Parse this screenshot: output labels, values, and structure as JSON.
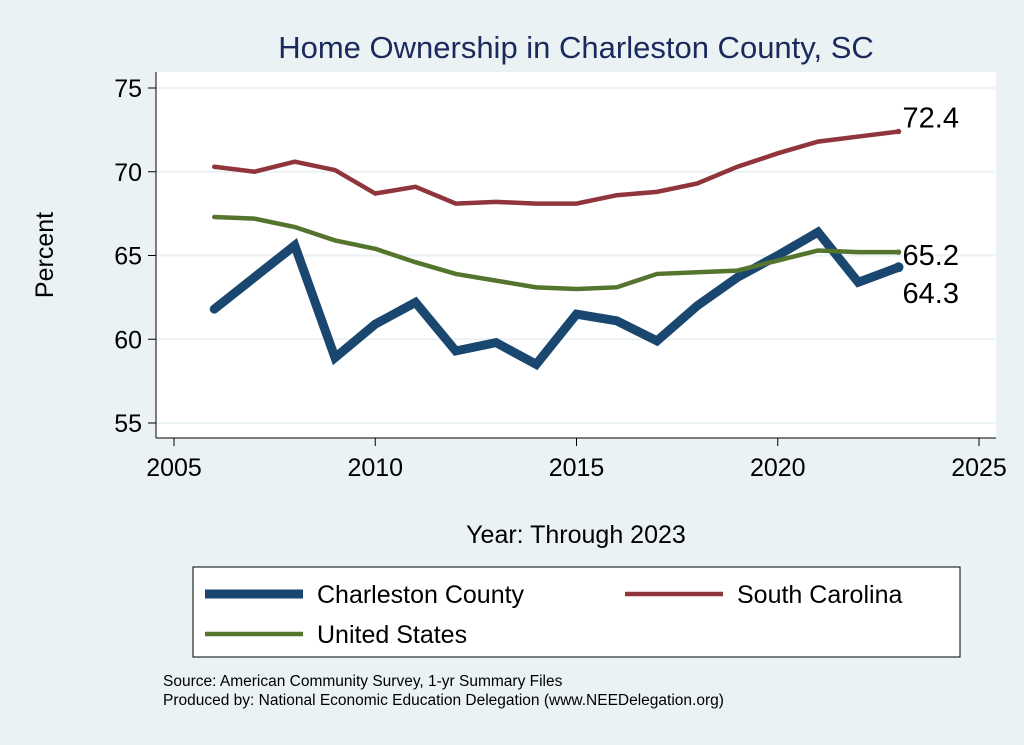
{
  "chart_data": {
    "type": "line",
    "title": "Home Ownership in Charleston County, SC",
    "xlabel": "Year: Through 2023",
    "ylabel": "Percent",
    "xlim": [
      2005,
      2025
    ],
    "ylim": [
      55,
      75
    ],
    "xticks": [
      2005,
      2010,
      2015,
      2020,
      2025
    ],
    "yticks": [
      55,
      60,
      65,
      70,
      75
    ],
    "grid": true,
    "legend_position": "bottom",
    "x": [
      2006,
      2007,
      2008,
      2009,
      2010,
      2011,
      2012,
      2013,
      2014,
      2015,
      2016,
      2017,
      2018,
      2019,
      2020,
      2021,
      2022,
      2023
    ],
    "series": [
      {
        "name": "Charleston County",
        "color": "#1a476f",
        "values": [
          61.8,
          63.7,
          65.6,
          58.9,
          60.9,
          62.2,
          59.3,
          59.8,
          58.5,
          61.5,
          61.1,
          59.9,
          62.0,
          63.7,
          65.0,
          66.4,
          63.4,
          64.3
        ],
        "end_label": "64.3"
      },
      {
        "name": "South Carolina",
        "color": "#90353b",
        "values": [
          70.3,
          70.0,
          70.6,
          70.1,
          68.7,
          69.1,
          68.1,
          68.2,
          68.1,
          68.1,
          68.6,
          68.8,
          69.3,
          70.3,
          71.1,
          71.8,
          72.1,
          72.4
        ],
        "end_label": "72.4"
      },
      {
        "name": "United States",
        "color": "#55752f",
        "values": [
          67.3,
          67.2,
          66.7,
          65.9,
          65.4,
          64.6,
          63.9,
          63.5,
          63.1,
          63.0,
          63.1,
          63.9,
          64.0,
          64.1,
          64.7,
          65.3,
          65.2,
          65.2
        ],
        "end_label": "65.2"
      }
    ],
    "notes": [
      "Source: American Community Survey, 1-yr Summary Files",
      "Produced by: National Economic Education Delegation (www.NEEDelegation.org)"
    ]
  }
}
